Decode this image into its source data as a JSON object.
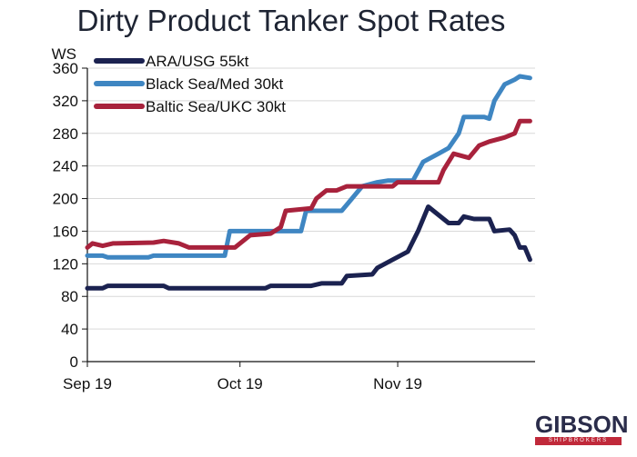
{
  "chart_data": {
    "type": "line",
    "title": "Dirty Product Tanker Spot Rates",
    "ylabel": "WS",
    "ylim": [
      0,
      360
    ],
    "yticks": [
      0,
      40,
      80,
      120,
      160,
      200,
      240,
      280,
      320,
      360
    ],
    "xticks": [
      {
        "label": "Sep 19",
        "date": "2019-09-01"
      },
      {
        "label": "Oct 19",
        "date": "2019-10-01"
      },
      {
        "label": "Nov 19",
        "date": "2019-11-01"
      }
    ],
    "xlim": [
      "2019-09-01",
      "2019-11-28"
    ],
    "grid": "horizontal",
    "legend": "top-left",
    "series": [
      {
        "name": "ARA/USG 55kt",
        "color": "#1b2250",
        "points": [
          [
            "2019-09-01",
            90
          ],
          [
            "2019-09-04",
            90
          ],
          [
            "2019-09-05",
            93
          ],
          [
            "2019-09-16",
            93
          ],
          [
            "2019-09-17",
            90
          ],
          [
            "2019-10-06",
            90
          ],
          [
            "2019-10-07",
            93
          ],
          [
            "2019-10-15",
            93
          ],
          [
            "2019-10-17",
            96
          ],
          [
            "2019-10-21",
            96
          ],
          [
            "2019-10-22",
            105
          ],
          [
            "2019-10-27",
            107
          ],
          [
            "2019-10-28",
            115
          ],
          [
            "2019-10-31",
            125
          ],
          [
            "2019-11-03",
            135
          ],
          [
            "2019-11-05",
            160
          ],
          [
            "2019-11-07",
            190
          ],
          [
            "2019-11-09",
            180
          ],
          [
            "2019-11-11",
            170
          ],
          [
            "2019-11-13",
            170
          ],
          [
            "2019-11-14",
            178
          ],
          [
            "2019-11-16",
            175
          ],
          [
            "2019-11-19",
            175
          ],
          [
            "2019-11-20",
            160
          ],
          [
            "2019-11-23",
            162
          ],
          [
            "2019-11-24",
            155
          ],
          [
            "2019-11-25",
            140
          ],
          [
            "2019-11-26",
            140
          ],
          [
            "2019-11-27",
            125
          ]
        ]
      },
      {
        "name": "Black Sea/Med 30kt",
        "color": "#3f86c2",
        "points": [
          [
            "2019-09-01",
            130
          ],
          [
            "2019-09-04",
            130
          ],
          [
            "2019-09-05",
            128
          ],
          [
            "2019-09-13",
            128
          ],
          [
            "2019-09-14",
            130
          ],
          [
            "2019-09-28",
            130
          ],
          [
            "2019-09-29",
            160
          ],
          [
            "2019-10-13",
            160
          ],
          [
            "2019-10-14",
            185
          ],
          [
            "2019-10-21",
            185
          ],
          [
            "2019-10-23",
            200
          ],
          [
            "2019-10-25",
            215
          ],
          [
            "2019-10-28",
            220
          ],
          [
            "2019-10-30",
            222
          ],
          [
            "2019-11-04",
            222
          ],
          [
            "2019-11-06",
            245
          ],
          [
            "2019-11-09",
            255
          ],
          [
            "2019-11-11",
            262
          ],
          [
            "2019-11-13",
            280
          ],
          [
            "2019-11-14",
            300
          ],
          [
            "2019-11-18",
            300
          ],
          [
            "2019-11-19",
            298
          ],
          [
            "2019-11-20",
            320
          ],
          [
            "2019-11-22",
            340
          ],
          [
            "2019-11-24",
            346
          ],
          [
            "2019-11-25",
            350
          ],
          [
            "2019-11-27",
            348
          ]
        ]
      },
      {
        "name": "Baltic Sea/UKC 30kt",
        "color": "#a8223c",
        "points": [
          [
            "2019-09-01",
            140
          ],
          [
            "2019-09-02",
            145
          ],
          [
            "2019-09-04",
            142
          ],
          [
            "2019-09-06",
            145
          ],
          [
            "2019-09-14",
            146
          ],
          [
            "2019-09-16",
            148
          ],
          [
            "2019-09-19",
            145
          ],
          [
            "2019-09-21",
            140
          ],
          [
            "2019-09-30",
            140
          ],
          [
            "2019-10-01",
            145
          ],
          [
            "2019-10-03",
            155
          ],
          [
            "2019-10-07",
            157
          ],
          [
            "2019-10-09",
            165
          ],
          [
            "2019-10-10",
            185
          ],
          [
            "2019-10-15",
            188
          ],
          [
            "2019-10-16",
            200
          ],
          [
            "2019-10-18",
            210
          ],
          [
            "2019-10-20",
            210
          ],
          [
            "2019-10-22",
            215
          ],
          [
            "2019-10-31",
            215
          ],
          [
            "2019-11-01",
            220
          ],
          [
            "2019-11-09",
            220
          ],
          [
            "2019-11-10",
            235
          ],
          [
            "2019-11-12",
            255
          ],
          [
            "2019-11-15",
            250
          ],
          [
            "2019-11-17",
            265
          ],
          [
            "2019-11-19",
            270
          ],
          [
            "2019-11-22",
            275
          ],
          [
            "2019-11-24",
            280
          ],
          [
            "2019-11-25",
            295
          ],
          [
            "2019-11-27",
            295
          ]
        ]
      }
    ]
  },
  "logo": {
    "name": "GIBSON",
    "sub": "SHIPBROKERS"
  }
}
